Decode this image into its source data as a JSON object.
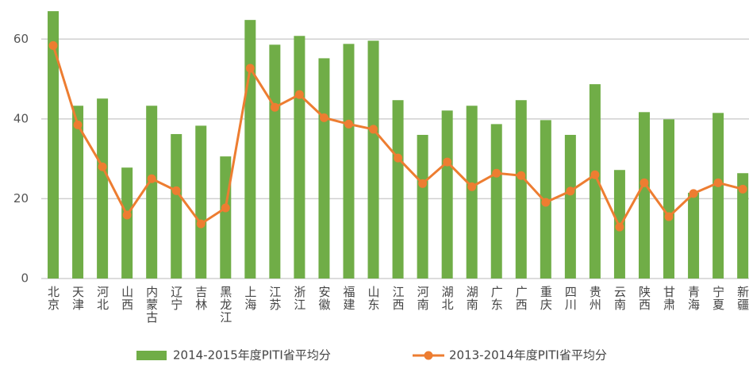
{
  "chart_data": {
    "type": "bar",
    "categories": [
      "北京",
      "天津",
      "河北",
      "山西",
      "内蒙古",
      "辽宁",
      "吉林",
      "黑龙江",
      "上海",
      "江苏",
      "浙江",
      "安徽",
      "福建",
      "山东",
      "江西",
      "河南",
      "湖北",
      "湖南",
      "广东",
      "广西",
      "重庆",
      "四川",
      "贵州",
      "云南",
      "陕西",
      "甘肃",
      "青海",
      "宁夏",
      "新疆"
    ],
    "series": [
      {
        "name": "2014-2015年度PITI省平均分",
        "color": "#70ad47",
        "type": "bar",
        "values": [
          67,
          43.3,
          45.1,
          27.8,
          43.3,
          36.2,
          38.3,
          30.6,
          64.8,
          58.6,
          60.8,
          55.2,
          58.8,
          59.6,
          44.7,
          36,
          42.1,
          43.3,
          38.7,
          44.7,
          39.7,
          36,
          48.7,
          27.2,
          41.7,
          39.9,
          21.5,
          41.5,
          26.4
        ]
      },
      {
        "name": "2013-2014年度PITI省平均分",
        "color": "#ed7d31",
        "type": "line",
        "values": [
          58.4,
          38.5,
          28,
          15.9,
          25,
          22,
          13.7,
          17.7,
          52.7,
          42.9,
          46.1,
          40.3,
          38.7,
          37.4,
          30.2,
          23.8,
          29.2,
          23,
          26.4,
          25.8,
          19.1,
          21.9,
          26,
          12.9,
          24,
          15.5,
          21.3,
          24,
          22.4
        ]
      }
    ],
    "ylim": [
      0,
      70
    ],
    "yticks": [
      0,
      20,
      40,
      60
    ],
    "grid": true
  }
}
